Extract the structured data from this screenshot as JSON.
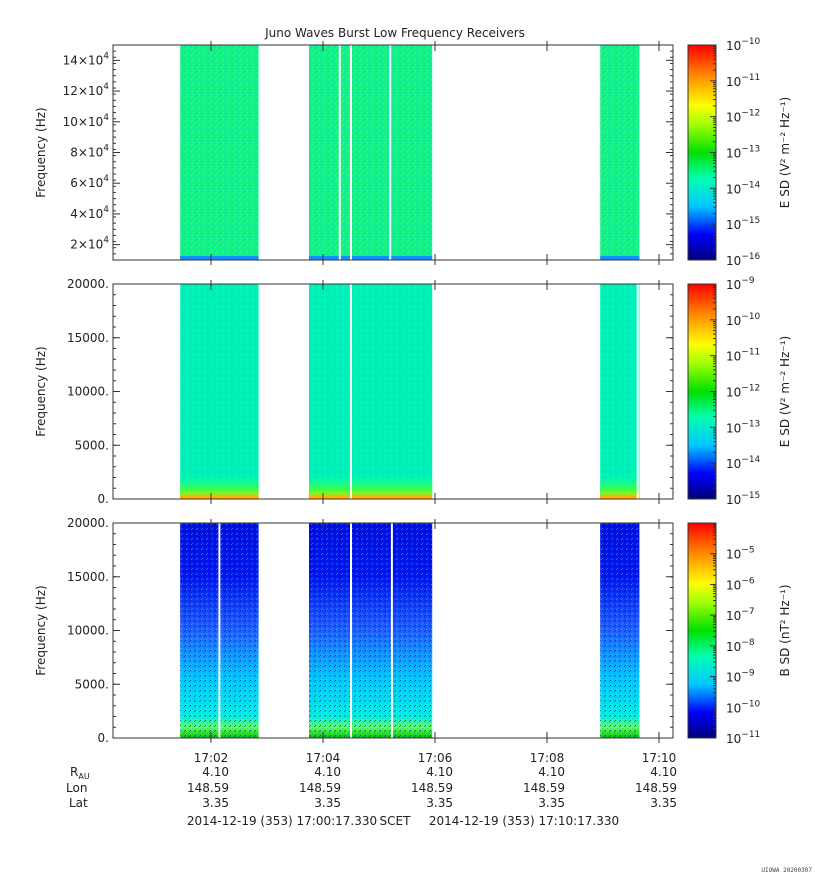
{
  "title": "Juno Waves Burst Low Frequency Receivers",
  "footer": {
    "start": "2014-12-19 (353) 17:00:17.330",
    "scet": "SCET",
    "end": "2014-12-19 (353) 17:10:17.330",
    "credit": "UIOWA 20200307"
  },
  "ephemeris": {
    "rows": [
      {
        "label": "R",
        "sub": "AU",
        "values": [
          "4.10",
          "4.10",
          "4.10",
          "4.10",
          "4.10"
        ]
      },
      {
        "label": "Lon",
        "sub": "",
        "values": [
          "148.59",
          "148.59",
          "148.59",
          "148.59",
          "148.59"
        ]
      },
      {
        "label": "Lat",
        "sub": "",
        "values": [
          "3.35",
          "3.35",
          "3.35",
          "3.35",
          "3.35"
        ]
      }
    ]
  },
  "chart_data": [
    {
      "type": "heatmap",
      "panel": "top",
      "ylabel": "Frequency (Hz)",
      "ylim": [
        10000,
        150000
      ],
      "yticks": [
        {
          "value": 20000,
          "mant": "2×10",
          "exp": "4"
        },
        {
          "value": 40000,
          "mant": "4×10",
          "exp": "4"
        },
        {
          "value": 60000,
          "mant": "6×10",
          "exp": "4"
        },
        {
          "value": 80000,
          "mant": "8×10",
          "exp": "4"
        },
        {
          "value": 100000,
          "mant": "10×10",
          "exp": "4"
        },
        {
          "value": 120000,
          "mant": "12×10",
          "exp": "4"
        },
        {
          "value": 140000,
          "mant": "14×10",
          "exp": "4"
        }
      ],
      "colorbar": {
        "label": "E SD (V² m⁻² Hz⁻¹)",
        "log_min": -16,
        "log_max": -10,
        "ticks": [
          -16,
          -15,
          -14,
          -13,
          -12,
          -11,
          -10
        ],
        "tick_base": "10"
      },
      "blocks": [
        {
          "start_min": 1.2,
          "end_min": 2.6
        },
        {
          "start_min": 3.5,
          "end_min": 5.7
        },
        {
          "start_min": 8.7,
          "end_min": 9.4
        }
      ],
      "gaps_min": [
        4.05,
        4.25,
        4.95
      ],
      "typical_log_level": -13.6
    },
    {
      "type": "heatmap",
      "panel": "middle",
      "ylabel": "Frequency (Hz)",
      "ylim": [
        0,
        20000
      ],
      "yticks": [
        {
          "value": 0,
          "label": "0."
        },
        {
          "value": 5000,
          "label": "5000."
        },
        {
          "value": 10000,
          "label": "10000."
        },
        {
          "value": 15000,
          "label": "15000."
        },
        {
          "value": 20000,
          "label": "20000."
        }
      ],
      "colorbar": {
        "label": "E SD (V² m⁻² Hz⁻¹)",
        "log_min": -15,
        "log_max": -9,
        "ticks": [
          -15,
          -14,
          -13,
          -12,
          -11,
          -10,
          -9
        ],
        "tick_base": "10"
      },
      "blocks": [
        {
          "start_min": 1.2,
          "end_min": 2.6
        },
        {
          "start_min": 3.5,
          "end_min": 5.7
        },
        {
          "start_min": 8.7,
          "end_min": 9.4
        }
      ],
      "gaps_min": [
        4.25,
        9.37
      ],
      "typical_log_level": -13.4
    },
    {
      "type": "heatmap",
      "panel": "bottom",
      "ylabel": "Frequency (Hz)",
      "ylim": [
        0,
        20000
      ],
      "yticks": [
        {
          "value": 0,
          "label": "0."
        },
        {
          "value": 5000,
          "label": "5000."
        },
        {
          "value": 10000,
          "label": "10000."
        },
        {
          "value": 15000,
          "label": "15000."
        },
        {
          "value": 20000,
          "label": "20000."
        }
      ],
      "colorbar": {
        "label": "B SD (nT² Hz⁻¹)",
        "log_min": -11,
        "log_max": -4,
        "ticks": [
          -11,
          -10,
          -9,
          -8,
          -7,
          -6,
          -5
        ],
        "tick_base": "10"
      },
      "blocks": [
        {
          "start_min": 1.2,
          "end_min": 2.6
        },
        {
          "start_min": 3.5,
          "end_min": 5.7
        },
        {
          "start_min": 8.7,
          "end_min": 9.4
        }
      ],
      "gaps_min": [
        1.9,
        4.25,
        4.98
      ],
      "typical_log_level": -10.3
    }
  ],
  "xaxis": {
    "start_label": "17:00:17.330",
    "xlim_min": [
      0,
      10.0
    ],
    "ticks": [
      {
        "min": 1.75,
        "label": "17:02"
      },
      {
        "min": 3.75,
        "label": "17:04"
      },
      {
        "min": 5.75,
        "label": "17:06"
      },
      {
        "min": 7.75,
        "label": "17:08"
      },
      {
        "min": 9.75,
        "label": "17:10"
      }
    ]
  }
}
